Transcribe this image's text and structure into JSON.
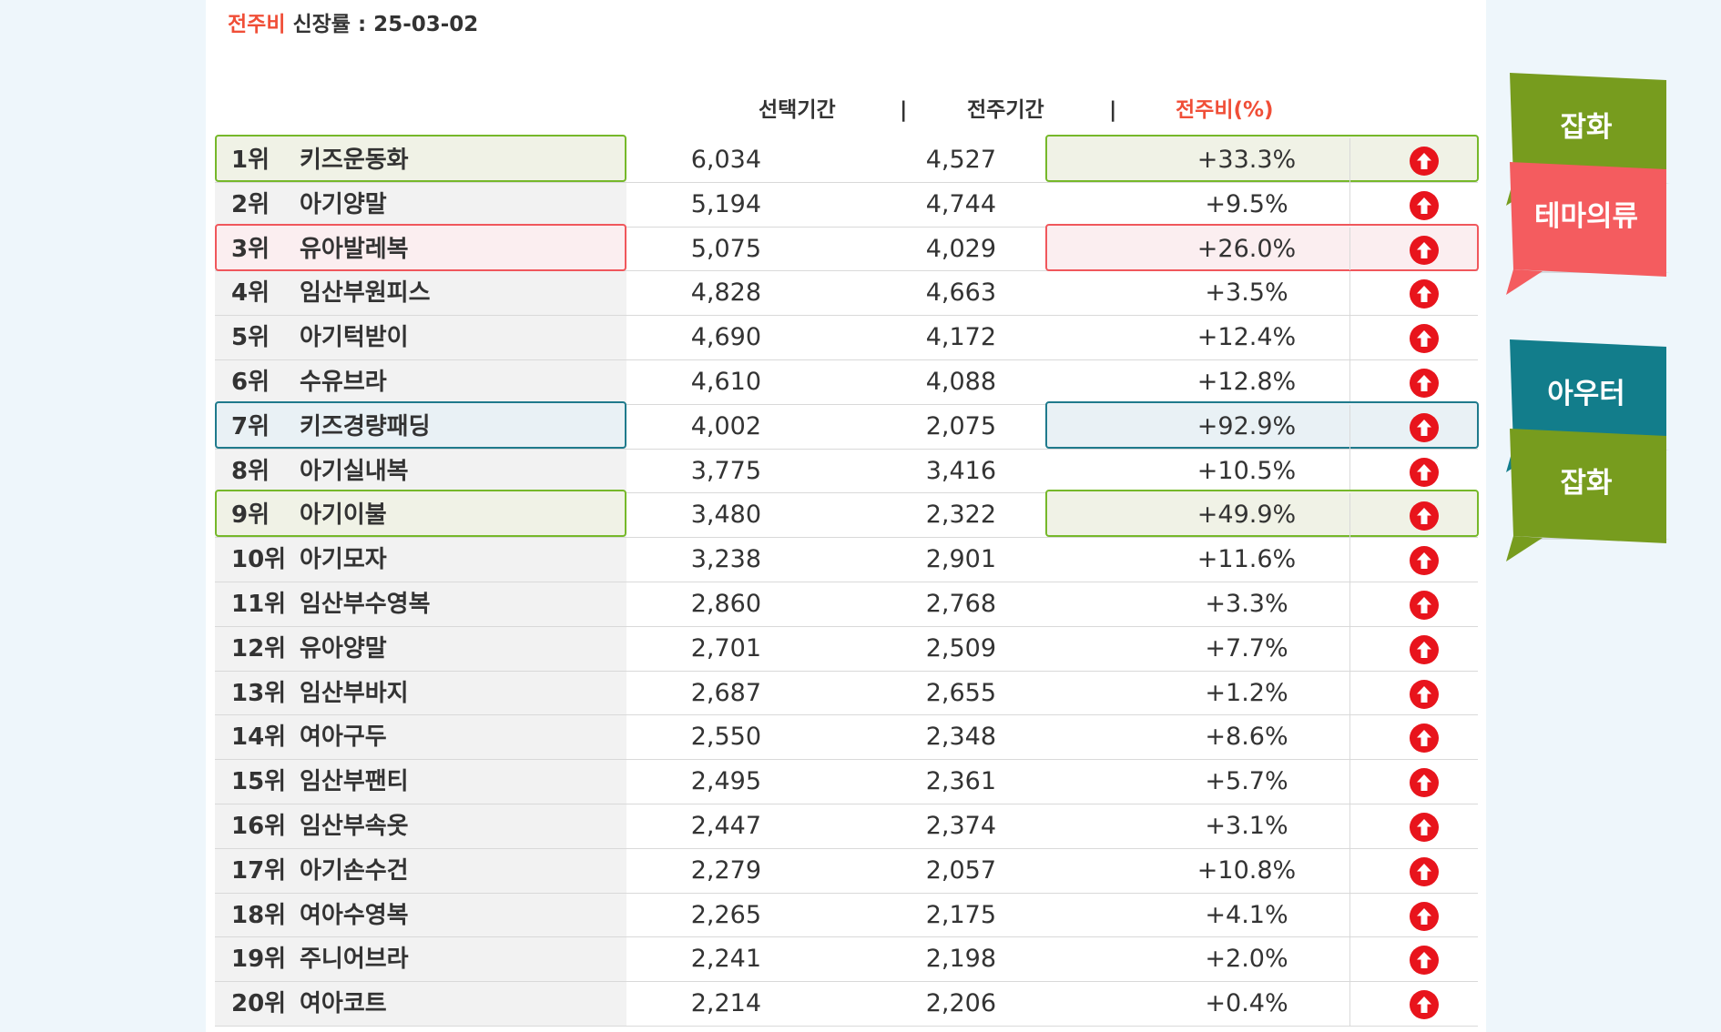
{
  "title": {
    "accent": "전주비",
    "rest": " 신장률 : 25-03-02"
  },
  "header": {
    "selected_period": "선택기간",
    "divider1": "|",
    "previous_week": "전주기간",
    "divider2": "|",
    "ratio": "전주비(%)"
  },
  "rows": [
    {
      "rank": "1위",
      "name": "키즈운동화",
      "selected": "6,034",
      "previous": "4,527",
      "ratio": "+33.3%",
      "highlight": "green"
    },
    {
      "rank": "2위",
      "name": "아기양말",
      "selected": "5,194",
      "previous": "4,744",
      "ratio": "+9.5%",
      "highlight": ""
    },
    {
      "rank": "3위",
      "name": "유아발레복",
      "selected": "5,075",
      "previous": "4,029",
      "ratio": "+26.0%",
      "highlight": "red"
    },
    {
      "rank": "4위",
      "name": "임산부원피스",
      "selected": "4,828",
      "previous": "4,663",
      "ratio": "+3.5%",
      "highlight": ""
    },
    {
      "rank": "5위",
      "name": "아기턱받이",
      "selected": "4,690",
      "previous": "4,172",
      "ratio": "+12.4%",
      "highlight": ""
    },
    {
      "rank": "6위",
      "name": "수유브라",
      "selected": "4,610",
      "previous": "4,088",
      "ratio": "+12.8%",
      "highlight": ""
    },
    {
      "rank": "7위",
      "name": "키즈경량패딩",
      "selected": "4,002",
      "previous": "2,075",
      "ratio": "+92.9%",
      "highlight": "teal"
    },
    {
      "rank": "8위",
      "name": "아기실내복",
      "selected": "3,775",
      "previous": "3,416",
      "ratio": "+10.5%",
      "highlight": ""
    },
    {
      "rank": "9위",
      "name": "아기이불",
      "selected": "3,480",
      "previous": "2,322",
      "ratio": "+49.9%",
      "highlight": "green"
    },
    {
      "rank": "10위",
      "name": "아기모자",
      "selected": "3,238",
      "previous": "2,901",
      "ratio": "+11.6%",
      "highlight": ""
    },
    {
      "rank": "11위",
      "name": "임산부수영복",
      "selected": "2,860",
      "previous": "2,768",
      "ratio": "+3.3%",
      "highlight": ""
    },
    {
      "rank": "12위",
      "name": "유아양말",
      "selected": "2,701",
      "previous": "2,509",
      "ratio": "+7.7%",
      "highlight": ""
    },
    {
      "rank": "13위",
      "name": "임산부바지",
      "selected": "2,687",
      "previous": "2,655",
      "ratio": "+1.2%",
      "highlight": ""
    },
    {
      "rank": "14위",
      "name": "여아구두",
      "selected": "2,550",
      "previous": "2,348",
      "ratio": "+8.6%",
      "highlight": ""
    },
    {
      "rank": "15위",
      "name": "임산부팬티",
      "selected": "2,495",
      "previous": "2,361",
      "ratio": "+5.7%",
      "highlight": ""
    },
    {
      "rank": "16위",
      "name": "임산부속옷",
      "selected": "2,447",
      "previous": "2,374",
      "ratio": "+3.1%",
      "highlight": ""
    },
    {
      "rank": "17위",
      "name": "아기손수건",
      "selected": "2,279",
      "previous": "2,057",
      "ratio": "+10.8%",
      "highlight": ""
    },
    {
      "rank": "18위",
      "name": "여아수영복",
      "selected": "2,265",
      "previous": "2,175",
      "ratio": "+4.1%",
      "highlight": ""
    },
    {
      "rank": "19위",
      "name": "주니어브라",
      "selected": "2,241",
      "previous": "2,198",
      "ratio": "+2.0%",
      "highlight": ""
    },
    {
      "rank": "20위",
      "name": "여아코트",
      "selected": "2,214",
      "previous": "2,206",
      "ratio": "+0.4%",
      "highlight": ""
    }
  ],
  "icons": {
    "trend": "arrow-up-circle-icon"
  },
  "tags": [
    {
      "label": "잡화",
      "color": "#779c1e",
      "for_row": 1
    },
    {
      "label": "테마의류",
      "color": "#f45c5f",
      "for_row": 3
    },
    {
      "label": "아우터",
      "color": "#127d8b",
      "for_row": 7
    },
    {
      "label": "잡화",
      "color": "#779c1e",
      "for_row": 9
    }
  ],
  "colors": {
    "accent": "#f04e37",
    "arrow": "#e8141c",
    "green": "#76b82a",
    "red": "#f0575c",
    "teal": "#1f7a8c"
  }
}
